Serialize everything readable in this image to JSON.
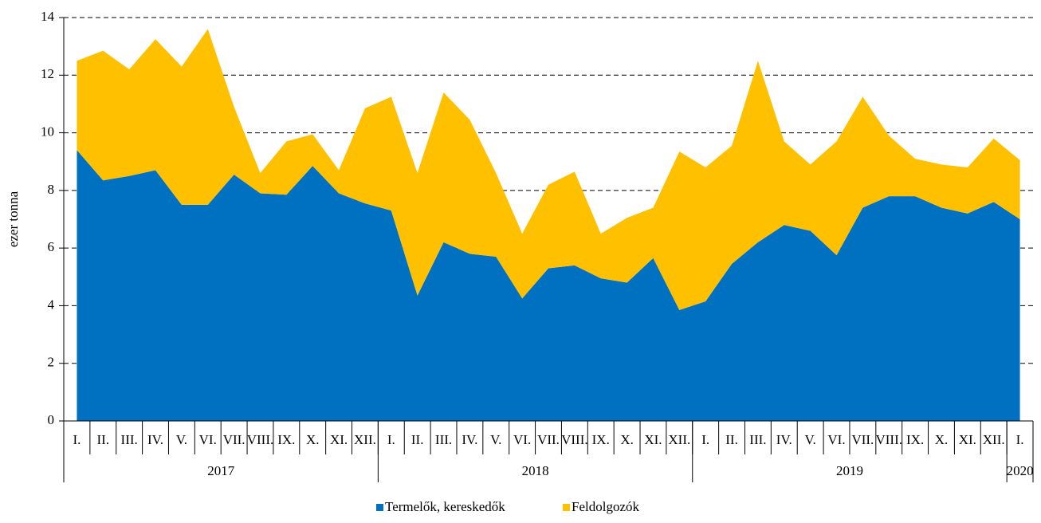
{
  "chart_data": {
    "type": "stacked_area",
    "y_label": "ezer tonna",
    "categories": [
      "I.",
      "II.",
      "III.",
      "IV.",
      "V.",
      "VI.",
      "VII.",
      "VIII.",
      "IX.",
      "X.",
      "XI.",
      "XII.",
      "I.",
      "II.",
      "III.",
      "IV.",
      "V.",
      "VI.",
      "VII.",
      "VIII.",
      "IX.",
      "X.",
      "XI.",
      "XII.",
      "I.",
      "II.",
      "III.",
      "IV.",
      "V.",
      "VI.",
      "VII.",
      "VIII.",
      "IX.",
      "X.",
      "XI.",
      "XII.",
      "I."
    ],
    "x_groups": [
      {
        "label": "2017",
        "size": 12
      },
      {
        "label": "2018",
        "size": 12
      },
      {
        "label": "2019",
        "size": 12
      },
      {
        "label": "2020",
        "size": 1
      }
    ],
    "series": [
      {
        "name": "Termelők, kereskedők",
        "color": "#0070c0",
        "values": [
          9.4,
          8.35,
          8.5,
          8.7,
          7.5,
          7.5,
          8.55,
          7.9,
          7.85,
          8.85,
          7.9,
          7.55,
          7.3,
          4.35,
          6.2,
          5.8,
          5.7,
          4.25,
          5.3,
          5.4,
          4.95,
          4.8,
          5.65,
          3.85,
          4.15,
          5.45,
          6.2,
          6.8,
          6.6,
          5.75,
          7.4,
          7.8,
          7.8,
          7.4,
          7.2,
          7.6,
          7.0
        ]
      },
      {
        "name": "Feldolgozók",
        "color": "#ffc000",
        "values": [
          3.1,
          4.5,
          3.7,
          4.55,
          4.8,
          6.1,
          2.35,
          0.7,
          1.85,
          1.1,
          0.8,
          3.3,
          3.95,
          4.25,
          5.2,
          4.65,
          2.9,
          2.25,
          2.9,
          3.25,
          1.55,
          2.25,
          1.75,
          5.5,
          4.65,
          4.1,
          6.3,
          2.9,
          2.3,
          3.95,
          3.85,
          2.1,
          1.3,
          1.5,
          1.6,
          2.2,
          2.05
        ]
      }
    ],
    "ylim": [
      0,
      14
    ],
    "yticks": [
      0,
      2,
      4,
      6,
      8,
      10,
      12,
      14
    ],
    "grid": true,
    "legend": "bottom"
  }
}
